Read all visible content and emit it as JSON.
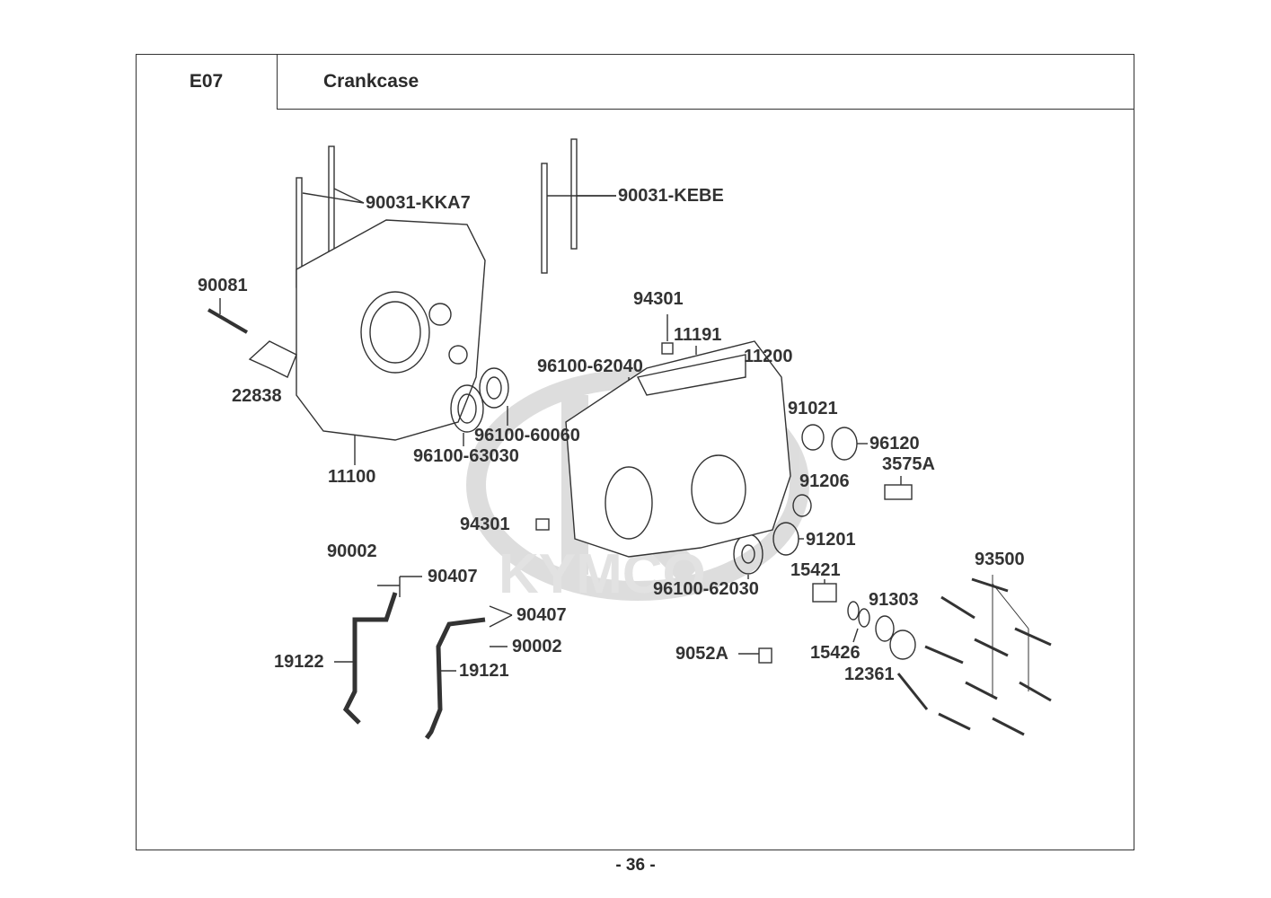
{
  "header": {
    "section_code": "E07",
    "title": "Crankcase"
  },
  "watermark": {
    "brand": "KYMCO"
  },
  "labels": [
    {
      "id": "l1",
      "text": "90031-KKA7"
    },
    {
      "id": "l2",
      "text": "90031-KEBE"
    },
    {
      "id": "l3",
      "text": "90081"
    },
    {
      "id": "l4",
      "text": "22838"
    },
    {
      "id": "l5",
      "text": "11100"
    },
    {
      "id": "l6",
      "text": "94301"
    },
    {
      "id": "l7",
      "text": "11191"
    },
    {
      "id": "l8",
      "text": "11200"
    },
    {
      "id": "l9",
      "text": "96100-62040"
    },
    {
      "id": "l10",
      "text": "96100-60060"
    },
    {
      "id": "l11",
      "text": "96100-63030"
    },
    {
      "id": "l12",
      "text": "91021"
    },
    {
      "id": "l13",
      "text": "96120"
    },
    {
      "id": "l14",
      "text": "3575A"
    },
    {
      "id": "l15",
      "text": "91206"
    },
    {
      "id": "l16",
      "text": "94301"
    },
    {
      "id": "l17",
      "text": "91201"
    },
    {
      "id": "l18",
      "text": "15421"
    },
    {
      "id": "l19",
      "text": "93500"
    },
    {
      "id": "l20",
      "text": "90002"
    },
    {
      "id": "l21",
      "text": "90407"
    },
    {
      "id": "l22",
      "text": "96100-62030"
    },
    {
      "id": "l23",
      "text": "91303"
    },
    {
      "id": "l24",
      "text": "90407"
    },
    {
      "id": "l25",
      "text": "90002"
    },
    {
      "id": "l26",
      "text": "9052A"
    },
    {
      "id": "l27",
      "text": "15426"
    },
    {
      "id": "l28",
      "text": "19122"
    },
    {
      "id": "l29",
      "text": "12361"
    },
    {
      "id": "l30",
      "text": "19121"
    }
  ],
  "footer": {
    "page": "- 36 -"
  }
}
